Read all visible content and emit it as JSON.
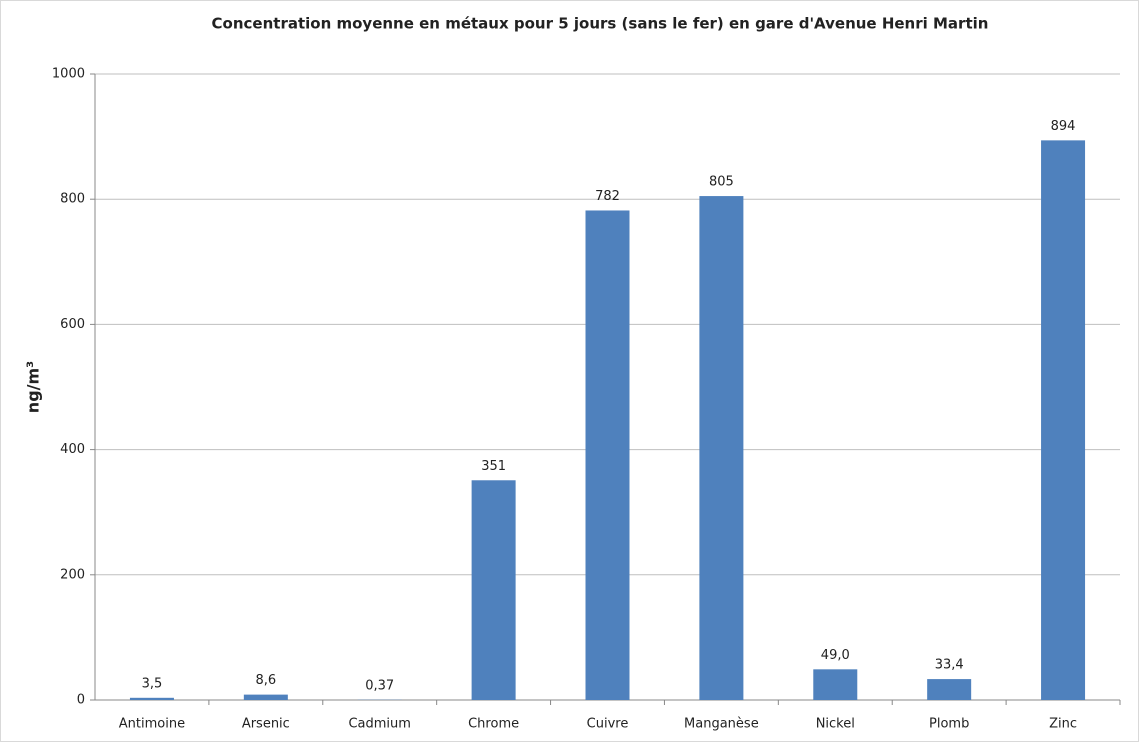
{
  "chart_data": {
    "type": "bar",
    "title": "Concentration moyenne en métaux pour 5 jours (sans le fer) en gare d'Avenue Henri Martin",
    "y_label": "ng/m³",
    "categories": [
      "Antimoine",
      "Arsenic",
      "Cadmium",
      "Chrome",
      "Cuivre",
      "Manganèse",
      "Nickel",
      "Plomb",
      "Zinc"
    ],
    "values": [
      3.5,
      8.6,
      0.37,
      351,
      782,
      805,
      49.0,
      33.4,
      894
    ],
    "value_labels": [
      "3,5",
      "8,6",
      "0,37",
      "351",
      "782",
      "805",
      "49,0",
      "33,4",
      "894"
    ],
    "color": "#4f81bd",
    "ylim": [
      0,
      1000
    ],
    "yticks": [
      0,
      200,
      400,
      600,
      800,
      1000
    ],
    "grid": true
  }
}
